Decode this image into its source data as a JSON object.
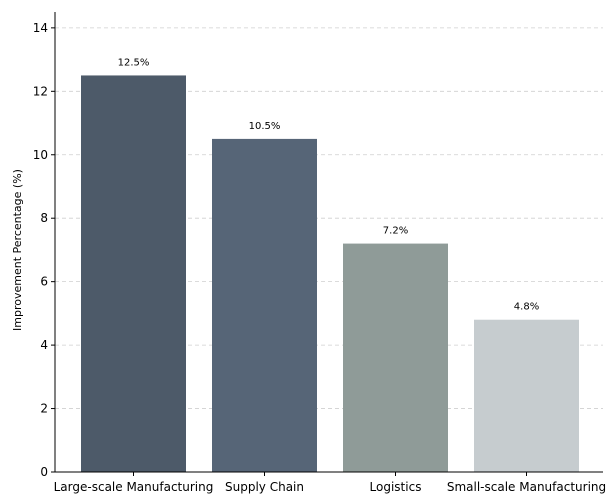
{
  "chart_data": {
    "type": "bar",
    "categories": [
      "Large-scale Manufacturing",
      "Supply Chain",
      "Logistics",
      "Small-scale Manufacturing"
    ],
    "values": [
      12.5,
      10.5,
      7.2,
      4.8
    ],
    "value_labels": [
      "12.5%",
      "10.5%",
      "7.2%",
      "4.8%"
    ],
    "colors": [
      "#4d5a69",
      "#566577",
      "#8f9b98",
      "#c6cccf"
    ],
    "title": "",
    "xlabel": "",
    "ylabel": "Improvement Percentage (%)",
    "ylim": [
      0,
      14.5
    ],
    "yticks": [
      0,
      2,
      4,
      6,
      8,
      10,
      12,
      14
    ],
    "grid": "y-dashed",
    "legend": "none"
  }
}
